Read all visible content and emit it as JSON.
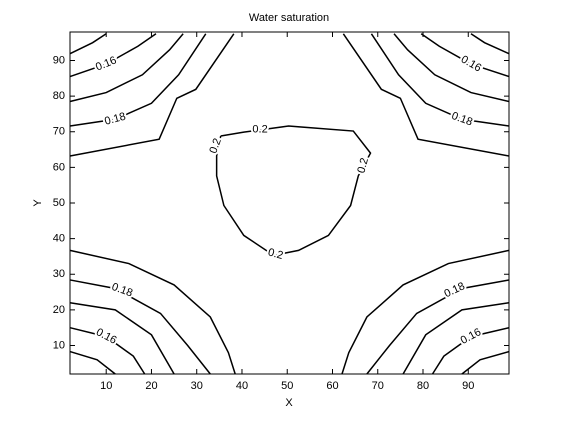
{
  "chart_data": {
    "type": "contour",
    "title": "Water saturation",
    "xlabel": "X",
    "ylabel": "Y",
    "xlim": [
      2,
      99
    ],
    "ylim": [
      2,
      98
    ],
    "xticks": [
      10,
      20,
      30,
      40,
      50,
      60,
      70,
      80,
      90
    ],
    "yticks": [
      10,
      20,
      30,
      40,
      50,
      60,
      70,
      80,
      90
    ],
    "color": "#000000",
    "contours": [
      {
        "x": [
          2,
          7,
          10
        ],
        "y": [
          91.9,
          95,
          97.5
        ]
      },
      {
        "level": 0.16,
        "x": [
          2,
          10,
          17,
          21
        ],
        "y": [
          85.5,
          89,
          94,
          97.5
        ]
      },
      {
        "x": [
          2,
          10,
          18,
          24,
          27
        ],
        "y": [
          78.5,
          81,
          86,
          93,
          97.5
        ]
      },
      {
        "level": 0.18,
        "x": [
          2,
          12,
          20,
          26,
          32
        ],
        "y": [
          71.6,
          73.5,
          78,
          86,
          97.5
        ]
      },
      {
        "x": [
          2,
          21.7,
          25.6,
          29.8,
          38.2
        ],
        "y": [
          63.2,
          67.9,
          79.4,
          81.9,
          97.5
        ]
      },
      {
        "x": [
          99,
          93.6,
          90.6
        ],
        "y": [
          91.9,
          95,
          97.5
        ]
      },
      {
        "level": 0.16,
        "x": [
          99,
          90.6,
          83.6,
          79.6
        ],
        "y": [
          85.5,
          89,
          94,
          97.5
        ]
      },
      {
        "x": [
          99,
          90.6,
          82.6,
          76.6,
          73.6
        ],
        "y": [
          78.5,
          81,
          86,
          93,
          97.5
        ]
      },
      {
        "level": 0.18,
        "x": [
          99,
          88.6,
          80.6,
          74.6,
          68.6
        ],
        "y": [
          71.6,
          73.5,
          78,
          86,
          97.5
        ]
      },
      {
        "x": [
          99,
          78.9,
          75,
          70.8,
          62.4
        ],
        "y": [
          63.2,
          67.9,
          79.4,
          81.9,
          97.5
        ]
      },
      {
        "x": [
          2,
          15,
          25,
          33,
          37,
          38.5
        ],
        "y": [
          36.7,
          33,
          27,
          18,
          8,
          2
        ]
      },
      {
        "level": 0.18,
        "x": [
          2,
          12,
          22,
          28,
          33
        ],
        "y": [
          28.4,
          26,
          19,
          10,
          2
        ]
      },
      {
        "x": [
          2,
          12,
          20,
          25
        ],
        "y": [
          22,
          20,
          13,
          2
        ]
      },
      {
        "level": 0.16,
        "x": [
          2,
          10,
          16,
          18.5
        ],
        "y": [
          15,
          12.5,
          7,
          2
        ]
      },
      {
        "x": [
          2,
          8,
          12
        ],
        "y": [
          8.3,
          6,
          2
        ]
      },
      {
        "x": [
          99,
          85.6,
          75.6,
          67.6,
          63.6,
          62.1
        ],
        "y": [
          36.7,
          33,
          27,
          18,
          8,
          2
        ]
      },
      {
        "level": 0.18,
        "x": [
          99,
          88.6,
          78.6,
          72.6,
          67.6
        ],
        "y": [
          28.4,
          26,
          19,
          10,
          2
        ]
      },
      {
        "x": [
          99,
          88.6,
          80.6,
          75.6
        ],
        "y": [
          22,
          20,
          13,
          2
        ]
      },
      {
        "level": 0.16,
        "x": [
          99,
          90.6,
          84.6,
          82.1
        ],
        "y": [
          15,
          12.5,
          7,
          2
        ]
      },
      {
        "x": [
          99,
          92.6,
          88.6
        ],
        "y": [
          8.3,
          6,
          2
        ]
      },
      {
        "level": 0.2,
        "x": [
          35.3,
          40.4,
          50.3,
          64.6,
          68.4,
          65.7,
          64,
          59.1,
          52.5,
          47,
          40.4,
          36,
          34.4,
          34.4,
          35.3
        ],
        "y": [
          68.8,
          69.9,
          71.6,
          70.2,
          64,
          57.6,
          49.3,
          40.9,
          36.7,
          35.3,
          40.9,
          49.3,
          57.6,
          63.2,
          68.8
        ]
      }
    ]
  }
}
